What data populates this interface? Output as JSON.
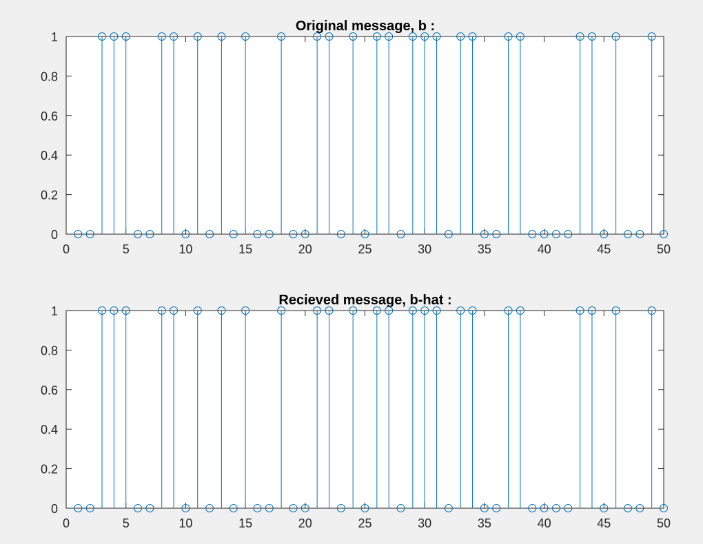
{
  "figure": {
    "background": "#f0f0f0",
    "axes_background": "#ffffff",
    "axis_color": "#262626",
    "marker_color": "#0072bd"
  },
  "chart_data": [
    {
      "type": "stem",
      "title": "Original message, b :",
      "xlabel": "",
      "ylabel": "",
      "xlim": [
        0,
        50
      ],
      "ylim": [
        0,
        1
      ],
      "xticks": [
        0,
        5,
        10,
        15,
        20,
        25,
        30,
        35,
        40,
        45,
        50
      ],
      "yticks": [
        0,
        0.2,
        0.4,
        0.6,
        0.8,
        1
      ],
      "ytick_labels": [
        "0",
        "0.2",
        "0.4",
        "0.6",
        "0.8",
        "1"
      ],
      "grid": false,
      "marker": "circle",
      "x": [
        1,
        2,
        3,
        4,
        5,
        6,
        7,
        8,
        9,
        10,
        11,
        12,
        13,
        14,
        15,
        16,
        17,
        18,
        19,
        20,
        21,
        22,
        23,
        24,
        25,
        26,
        27,
        28,
        29,
        30,
        31,
        32,
        33,
        34,
        35,
        36,
        37,
        38,
        39,
        40,
        41,
        42,
        43,
        44,
        45,
        46,
        47,
        48,
        49,
        50
      ],
      "values": [
        0,
        0,
        1,
        1,
        1,
        0,
        0,
        1,
        1,
        0,
        1,
        0,
        1,
        0,
        1,
        0,
        0,
        1,
        0,
        0,
        1,
        1,
        0,
        1,
        0,
        1,
        1,
        0,
        1,
        1,
        1,
        0,
        1,
        1,
        0,
        0,
        1,
        1,
        0,
        0,
        0,
        0,
        1,
        1,
        0,
        1,
        0,
        0,
        1,
        0
      ]
    },
    {
      "type": "stem",
      "title": "Recieved message, b-hat :",
      "xlabel": "",
      "ylabel": "",
      "xlim": [
        0,
        50
      ],
      "ylim": [
        0,
        1
      ],
      "xticks": [
        0,
        5,
        10,
        15,
        20,
        25,
        30,
        35,
        40,
        45,
        50
      ],
      "yticks": [
        0,
        0.2,
        0.4,
        0.6,
        0.8,
        1
      ],
      "ytick_labels": [
        "0",
        "0.2",
        "0.4",
        "0.6",
        "0.8",
        "1"
      ],
      "grid": false,
      "marker": "circle",
      "x": [
        1,
        2,
        3,
        4,
        5,
        6,
        7,
        8,
        9,
        10,
        11,
        12,
        13,
        14,
        15,
        16,
        17,
        18,
        19,
        20,
        21,
        22,
        23,
        24,
        25,
        26,
        27,
        28,
        29,
        30,
        31,
        32,
        33,
        34,
        35,
        36,
        37,
        38,
        39,
        40,
        41,
        42,
        43,
        44,
        45,
        46,
        47,
        48,
        49,
        50
      ],
      "values": [
        0,
        0,
        1,
        1,
        1,
        0,
        0,
        1,
        1,
        0,
        1,
        0,
        1,
        0,
        1,
        0,
        0,
        1,
        0,
        0,
        1,
        1,
        0,
        1,
        0,
        1,
        1,
        0,
        1,
        1,
        1,
        0,
        1,
        1,
        0,
        0,
        1,
        1,
        0,
        0,
        0,
        0,
        1,
        1,
        0,
        1,
        0,
        0,
        1,
        0
      ]
    }
  ]
}
